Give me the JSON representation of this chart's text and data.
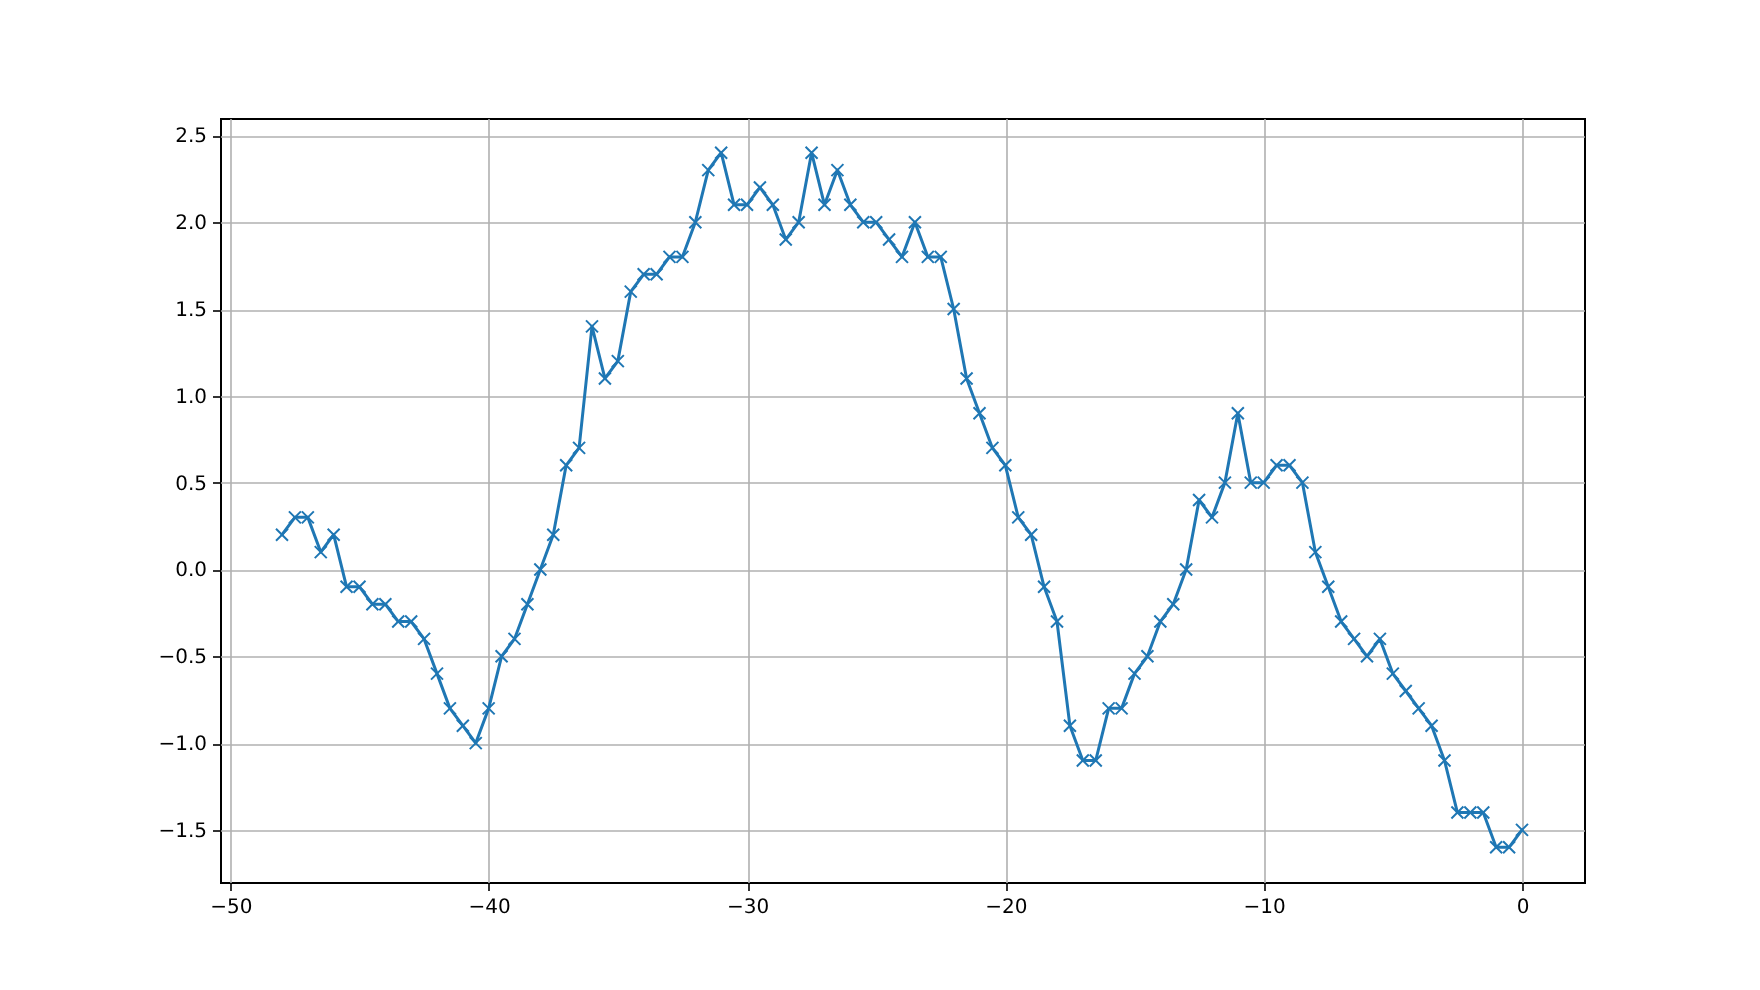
{
  "chart_data": {
    "type": "line",
    "x": [
      -48,
      -47.5,
      -47,
      -46.5,
      -46,
      -45.5,
      -45,
      -44.5,
      -44,
      -43.5,
      -43,
      -42.5,
      -42,
      -41.5,
      -41,
      -40.5,
      -40,
      -39.5,
      -39,
      -38.5,
      -38,
      -37.5,
      -37,
      -36.5,
      -36,
      -35.5,
      -35,
      -34.5,
      -34,
      -33.5,
      -33,
      -32.5,
      -32,
      -31.5,
      -31,
      -30.5,
      -30,
      -29.5,
      -29,
      -28.5,
      -28,
      -27.5,
      -27,
      -26.5,
      -26,
      -25.5,
      -25,
      -24.5,
      -24,
      -23.5,
      -23,
      -22.5,
      -22,
      -21.5,
      -21,
      -20.5,
      -20,
      -19.5,
      -19,
      -18.5,
      -18,
      -17.5,
      -17,
      -16.5,
      -16,
      -15.5,
      -15,
      -14.5,
      -14,
      -13.5,
      -13,
      -12.5,
      -12,
      -11.5,
      -11,
      -10.5,
      -10,
      -9.5,
      -9,
      -8.5,
      -8,
      -7.5,
      -7,
      -6.5,
      -6,
      -5.5,
      -5,
      -4.5,
      -4,
      -3.5,
      -3,
      -2.5,
      -2,
      -1.5,
      -1,
      -0.5,
      0
    ],
    "series": [
      {
        "color": "#1f77b4",
        "values": [
          0.2,
          0.3,
          0.3,
          0.1,
          0.2,
          -0.1,
          -0.1,
          -0.2,
          -0.2,
          -0.3,
          -0.3,
          -0.4,
          -0.6,
          -0.8,
          -0.9,
          -1.0,
          -0.8,
          -0.5,
          -0.4,
          -0.2,
          0.0,
          0.2,
          0.6,
          0.7,
          1.4,
          1.1,
          1.2,
          1.6,
          1.7,
          1.7,
          1.8,
          1.8,
          2.0,
          2.3,
          2.4,
          2.1,
          2.1,
          2.2,
          2.1,
          1.9,
          2.0,
          2.4,
          2.1,
          2.3,
          2.1,
          2.0,
          2.0,
          1.9,
          1.8,
          2.0,
          1.8,
          1.8,
          1.5,
          1.1,
          0.9,
          0.7,
          0.6,
          0.3,
          0.2,
          -0.1,
          -0.3,
          -0.9,
          -1.1,
          -1.1,
          -0.8,
          -0.8,
          -0.6,
          -0.5,
          -0.3,
          -0.2,
          0.0,
          0.4,
          0.3,
          0.5,
          0.9,
          0.5,
          0.5,
          0.6,
          0.6,
          0.5,
          0.1,
          -0.1,
          -0.3,
          -0.4,
          -0.5,
          -0.4,
          -0.6,
          -0.7,
          -0.8,
          -0.9,
          -1.1,
          -1.4,
          -1.4,
          -1.4,
          -1.6,
          -1.6,
          -1.5
        ]
      }
    ],
    "xlim": [
      -50.4,
      2.4
    ],
    "ylim": [
      -1.8,
      2.6
    ],
    "xticks": [
      -50,
      -40,
      -30,
      -20,
      -10,
      0
    ],
    "yticks": [
      -1.5,
      {
        "value": -1,
        "label": "−1.0"
      },
      -0.5,
      {
        "value": 0,
        "label": "0.0"
      },
      0.5,
      {
        "value": 1,
        "label": "1.0"
      },
      1.5,
      {
        "value": 2,
        "label": "2.0"
      },
      2.5
    ],
    "grid": true,
    "marker": "cross",
    "line_style": "solid"
  }
}
